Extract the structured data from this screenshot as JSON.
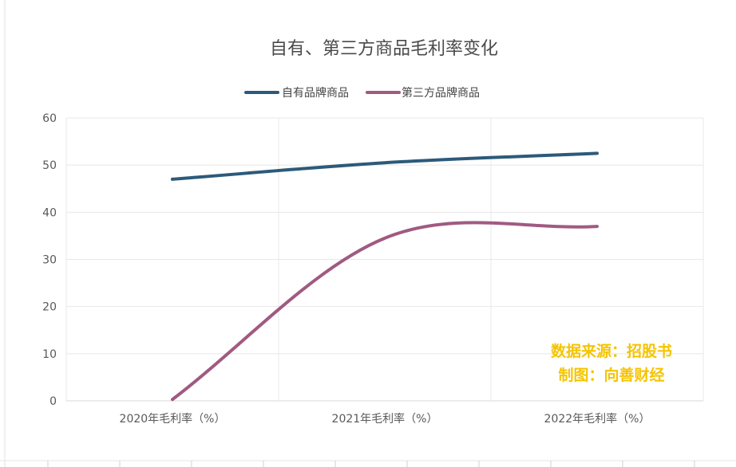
{
  "chart_data": {
    "type": "line",
    "title": "自有、第三方商品毛利率变化",
    "categories": [
      "2020年毛利率（%）",
      "2021年毛利率（%）",
      "2022年毛利率（%）"
    ],
    "series": [
      {
        "name": "自有品牌商品",
        "values": [
          47,
          50.5,
          52.5
        ],
        "color": "#2c5a7a"
      },
      {
        "name": "第三方品牌商品",
        "values": [
          0.3,
          34.5,
          37
        ],
        "color": "#a05a82"
      }
    ],
    "ylim": [
      0,
      60
    ],
    "yticks": [
      0,
      10,
      20,
      30,
      40,
      50,
      60
    ],
    "grid": true,
    "legend_position": "top",
    "smooth": true
  },
  "source_note": {
    "line1": "数据来源：招股书",
    "line2": "制图：向善财经"
  }
}
